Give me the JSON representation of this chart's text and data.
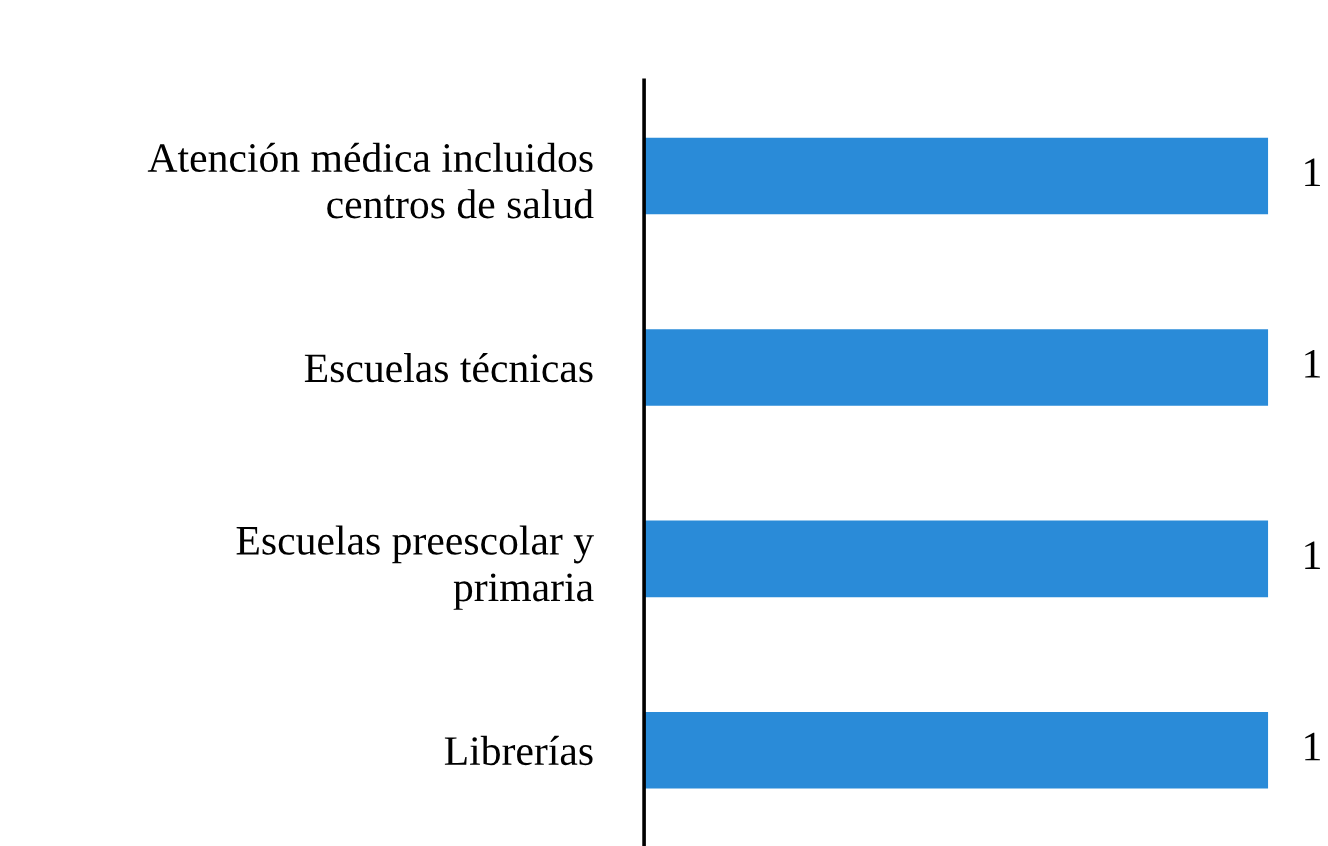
{
  "chart_data": {
    "type": "bar",
    "orientation": "horizontal",
    "categories": [
      "Atención médica incluidos\ncentros de salud",
      "Escuelas técnicas",
      "Escuelas preescolar y\nprimaria",
      "Librerías"
    ],
    "values": [
      1,
      1,
      1,
      1
    ],
    "color": "#2a8bd8",
    "data_labels": true,
    "grid": false,
    "legend": false
  }
}
